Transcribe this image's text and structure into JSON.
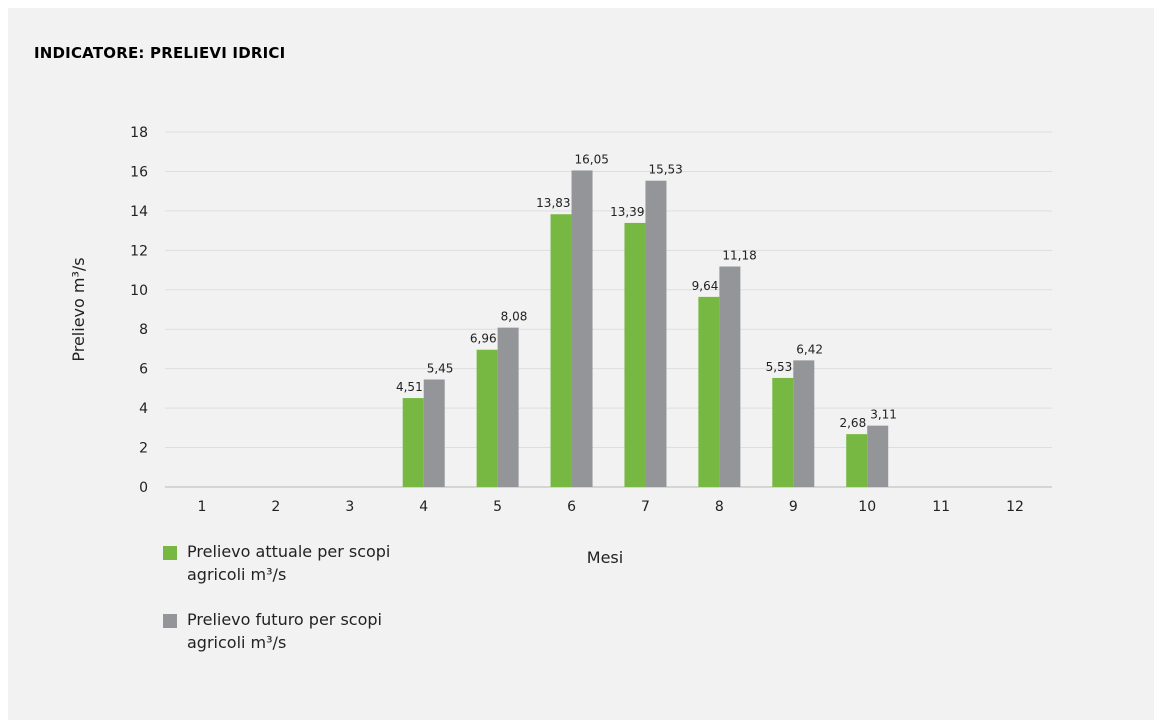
{
  "header": {
    "title": "INDICATORE: PRELIEVI IDRICI"
  },
  "colors": {
    "actual": "#77b843",
    "future": "#939598",
    "grid": "#dedede",
    "axis": "#c4c4c4",
    "background": "#f2f2f2"
  },
  "chart_data": {
    "type": "bar",
    "title": "",
    "xlabel": "Mesi",
    "ylabel": "Prelievo m³/s",
    "ylim": [
      0,
      18
    ],
    "yticks": [
      "0",
      "2",
      "4",
      "6",
      "8",
      "10",
      "12",
      "14",
      "16",
      "18"
    ],
    "grid": true,
    "legend_position": "bottom-left",
    "categories": [
      "1",
      "2",
      "3",
      "4",
      "5",
      "6",
      "7",
      "8",
      "9",
      "10",
      "11",
      "12"
    ],
    "series": [
      {
        "name_lines": [
          "Prelievo attuale per scopi",
          "agricoli m³/s"
        ],
        "color": "#77b843",
        "values": [
          null,
          null,
          null,
          4.51,
          6.96,
          13.83,
          13.39,
          9.64,
          5.53,
          2.68,
          null,
          null
        ],
        "labels": [
          "",
          "",
          "",
          "4,51",
          "6,96",
          "13,83",
          "13,39",
          "9,64",
          "5,53",
          "2,68",
          "",
          ""
        ]
      },
      {
        "name_lines": [
          "Prelievo futuro per scopi",
          "agricoli m³/s"
        ],
        "color": "#939598",
        "values": [
          null,
          null,
          null,
          5.45,
          8.08,
          16.05,
          15.53,
          11.18,
          6.42,
          3.11,
          null,
          null
        ],
        "labels": [
          "",
          "",
          "",
          "5,45",
          "8,08",
          "16,05",
          "15,53",
          "11,18",
          "6,42",
          "3,11",
          "",
          ""
        ]
      }
    ]
  }
}
